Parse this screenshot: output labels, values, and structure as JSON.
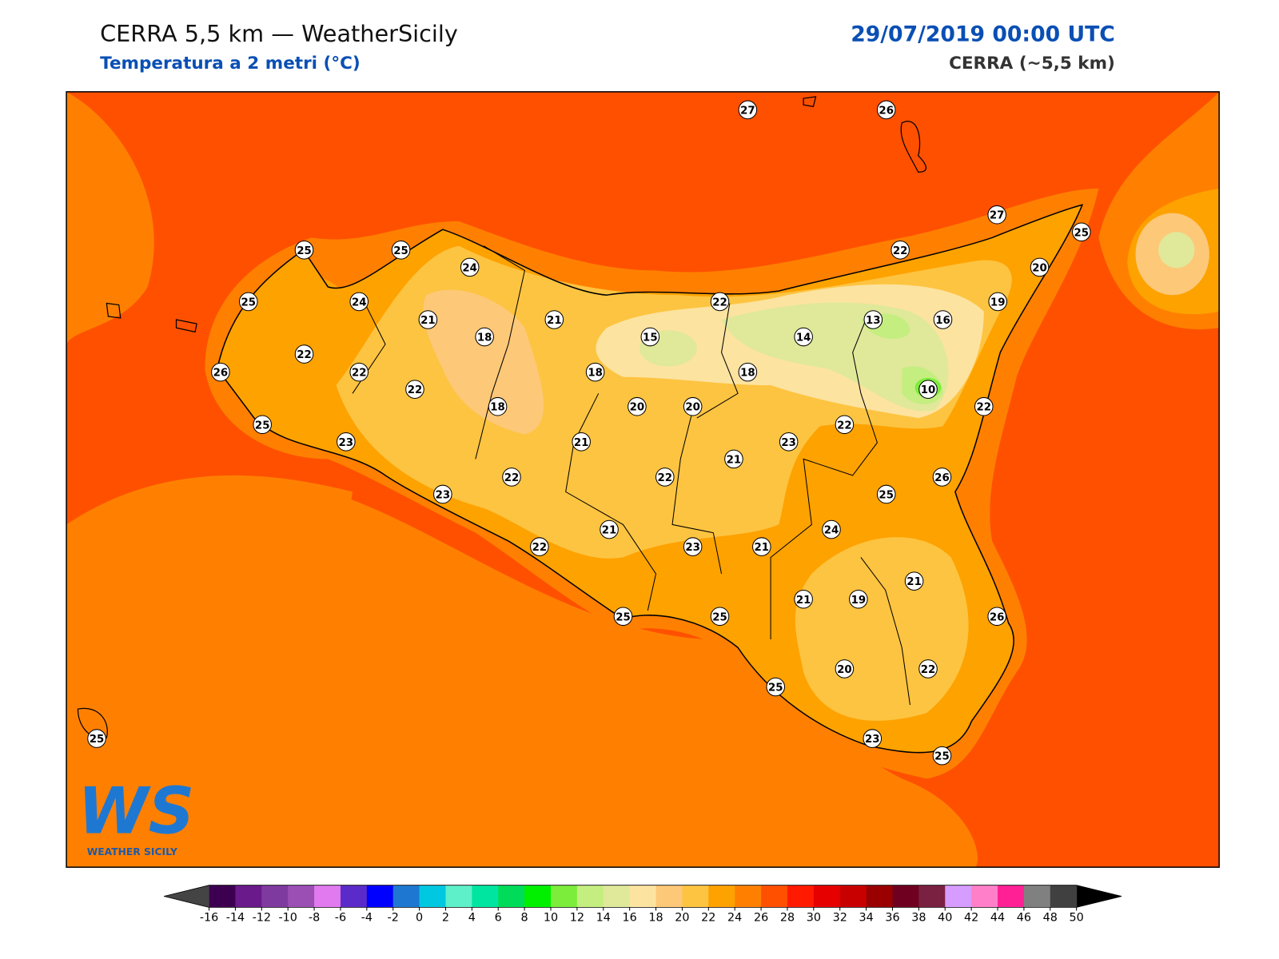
{
  "header": {
    "title": "CERRA 5,5 km — WeatherSicily",
    "subtitle": "Temperatura a 2 metri (°C)",
    "datetime": "29/07/2019 00:00 UTC",
    "model": "CERRA (~5,5 km)"
  },
  "map": {
    "points": [
      27,
      26,
      27,
      25,
      25,
      25,
      22,
      24,
      20,
      25,
      24,
      22,
      19,
      21,
      21,
      13,
      16,
      18,
      15,
      14,
      22,
      26,
      22,
      18,
      18,
      22,
      10,
      18,
      20,
      20,
      22,
      25,
      22,
      23,
      21,
      23,
      21,
      22,
      22,
      26,
      23,
      25,
      21,
      24,
      22,
      23,
      21,
      21,
      21,
      19,
      25,
      25,
      26,
      20,
      22,
      25,
      23,
      25,
      25
    ]
  },
  "colorbar": {
    "ticks": [
      -16,
      -14,
      -12,
      -10,
      -8,
      -6,
      -4,
      -2,
      0,
      2,
      4,
      6,
      8,
      10,
      12,
      14,
      16,
      18,
      20,
      22,
      24,
      26,
      28,
      30,
      32,
      34,
      36,
      38,
      40,
      42,
      44,
      46,
      48,
      50
    ],
    "colors": [
      "#3d0051",
      "#6a1a8a",
      "#7f3a9f",
      "#9b4fb5",
      "#e07aee",
      "#5a2bc8",
      "#0000ff",
      "#1e78d2",
      "#00c8e0",
      "#5ef0c8",
      "#00e6a0",
      "#00dc5a",
      "#00f000",
      "#7ded3c",
      "#c4ee80",
      "#e0e89a",
      "#fde3a0",
      "#fdc878",
      "#fdc441",
      "#fea200",
      "#ff8000",
      "#ff5000",
      "#ff1a00",
      "#e60000",
      "#c80000",
      "#9a0000",
      "#700020",
      "#7a2040",
      "#d69cff",
      "#ff80c8",
      "#ff2096",
      "#808080",
      "#404040"
    ],
    "under_color": "#444444",
    "over_color": "#000000"
  },
  "logo": {
    "mark": "WS",
    "text": "WEATHER SICILY"
  }
}
